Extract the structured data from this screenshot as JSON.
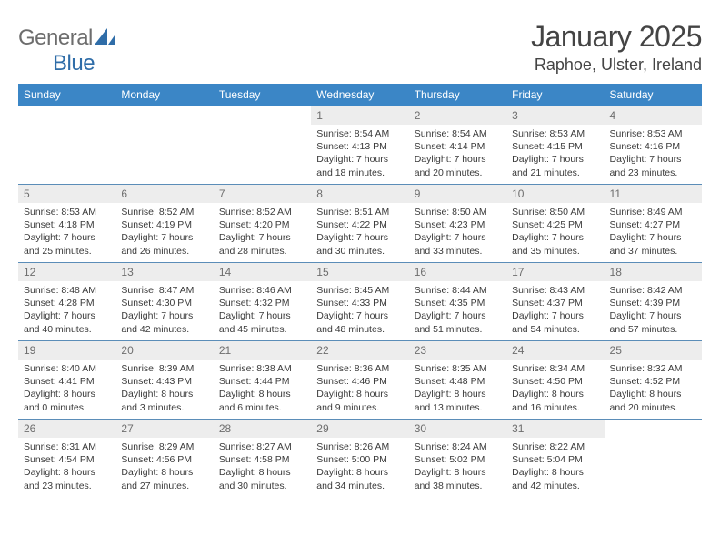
{
  "logo": {
    "general": "General",
    "blue": "Blue"
  },
  "title": "January 2025",
  "location": "Raphoe, Ulster, Ireland",
  "colors": {
    "header_bg": "#3b86c6",
    "header_fg": "#ffffff",
    "daynum_bg": "#ededed",
    "daynum_fg": "#6e6e6e",
    "rule": "#5b8db8",
    "logo_gray": "#6d6d6d",
    "logo_blue": "#2f6da8"
  },
  "days_of_week": [
    "Sunday",
    "Monday",
    "Tuesday",
    "Wednesday",
    "Thursday",
    "Friday",
    "Saturday"
  ],
  "weeks": [
    [
      null,
      null,
      null,
      {
        "n": "1",
        "sunrise": "8:54 AM",
        "sunset": "4:13 PM",
        "dl_h": "7",
        "dl_m": "18"
      },
      {
        "n": "2",
        "sunrise": "8:54 AM",
        "sunset": "4:14 PM",
        "dl_h": "7",
        "dl_m": "20"
      },
      {
        "n": "3",
        "sunrise": "8:53 AM",
        "sunset": "4:15 PM",
        "dl_h": "7",
        "dl_m": "21"
      },
      {
        "n": "4",
        "sunrise": "8:53 AM",
        "sunset": "4:16 PM",
        "dl_h": "7",
        "dl_m": "23"
      }
    ],
    [
      {
        "n": "5",
        "sunrise": "8:53 AM",
        "sunset": "4:18 PM",
        "dl_h": "7",
        "dl_m": "25"
      },
      {
        "n": "6",
        "sunrise": "8:52 AM",
        "sunset": "4:19 PM",
        "dl_h": "7",
        "dl_m": "26"
      },
      {
        "n": "7",
        "sunrise": "8:52 AM",
        "sunset": "4:20 PM",
        "dl_h": "7",
        "dl_m": "28"
      },
      {
        "n": "8",
        "sunrise": "8:51 AM",
        "sunset": "4:22 PM",
        "dl_h": "7",
        "dl_m": "30"
      },
      {
        "n": "9",
        "sunrise": "8:50 AM",
        "sunset": "4:23 PM",
        "dl_h": "7",
        "dl_m": "33"
      },
      {
        "n": "10",
        "sunrise": "8:50 AM",
        "sunset": "4:25 PM",
        "dl_h": "7",
        "dl_m": "35"
      },
      {
        "n": "11",
        "sunrise": "8:49 AM",
        "sunset": "4:27 PM",
        "dl_h": "7",
        "dl_m": "37"
      }
    ],
    [
      {
        "n": "12",
        "sunrise": "8:48 AM",
        "sunset": "4:28 PM",
        "dl_h": "7",
        "dl_m": "40"
      },
      {
        "n": "13",
        "sunrise": "8:47 AM",
        "sunset": "4:30 PM",
        "dl_h": "7",
        "dl_m": "42"
      },
      {
        "n": "14",
        "sunrise": "8:46 AM",
        "sunset": "4:32 PM",
        "dl_h": "7",
        "dl_m": "45"
      },
      {
        "n": "15",
        "sunrise": "8:45 AM",
        "sunset": "4:33 PM",
        "dl_h": "7",
        "dl_m": "48"
      },
      {
        "n": "16",
        "sunrise": "8:44 AM",
        "sunset": "4:35 PM",
        "dl_h": "7",
        "dl_m": "51"
      },
      {
        "n": "17",
        "sunrise": "8:43 AM",
        "sunset": "4:37 PM",
        "dl_h": "7",
        "dl_m": "54"
      },
      {
        "n": "18",
        "sunrise": "8:42 AM",
        "sunset": "4:39 PM",
        "dl_h": "7",
        "dl_m": "57"
      }
    ],
    [
      {
        "n": "19",
        "sunrise": "8:40 AM",
        "sunset": "4:41 PM",
        "dl_h": "8",
        "dl_m": "0"
      },
      {
        "n": "20",
        "sunrise": "8:39 AM",
        "sunset": "4:43 PM",
        "dl_h": "8",
        "dl_m": "3"
      },
      {
        "n": "21",
        "sunrise": "8:38 AM",
        "sunset": "4:44 PM",
        "dl_h": "8",
        "dl_m": "6"
      },
      {
        "n": "22",
        "sunrise": "8:36 AM",
        "sunset": "4:46 PM",
        "dl_h": "8",
        "dl_m": "9"
      },
      {
        "n": "23",
        "sunrise": "8:35 AM",
        "sunset": "4:48 PM",
        "dl_h": "8",
        "dl_m": "13"
      },
      {
        "n": "24",
        "sunrise": "8:34 AM",
        "sunset": "4:50 PM",
        "dl_h": "8",
        "dl_m": "16"
      },
      {
        "n": "25",
        "sunrise": "8:32 AM",
        "sunset": "4:52 PM",
        "dl_h": "8",
        "dl_m": "20"
      }
    ],
    [
      {
        "n": "26",
        "sunrise": "8:31 AM",
        "sunset": "4:54 PM",
        "dl_h": "8",
        "dl_m": "23"
      },
      {
        "n": "27",
        "sunrise": "8:29 AM",
        "sunset": "4:56 PM",
        "dl_h": "8",
        "dl_m": "27"
      },
      {
        "n": "28",
        "sunrise": "8:27 AM",
        "sunset": "4:58 PM",
        "dl_h": "8",
        "dl_m": "30"
      },
      {
        "n": "29",
        "sunrise": "8:26 AM",
        "sunset": "5:00 PM",
        "dl_h": "8",
        "dl_m": "34"
      },
      {
        "n": "30",
        "sunrise": "8:24 AM",
        "sunset": "5:02 PM",
        "dl_h": "8",
        "dl_m": "38"
      },
      {
        "n": "31",
        "sunrise": "8:22 AM",
        "sunset": "5:04 PM",
        "dl_h": "8",
        "dl_m": "42"
      },
      null
    ]
  ],
  "labels": {
    "sunrise": "Sunrise:",
    "sunset": "Sunset:",
    "daylight": "Daylight:",
    "hours_word": "hours",
    "and_word": "and",
    "minutes_word": "minutes."
  }
}
